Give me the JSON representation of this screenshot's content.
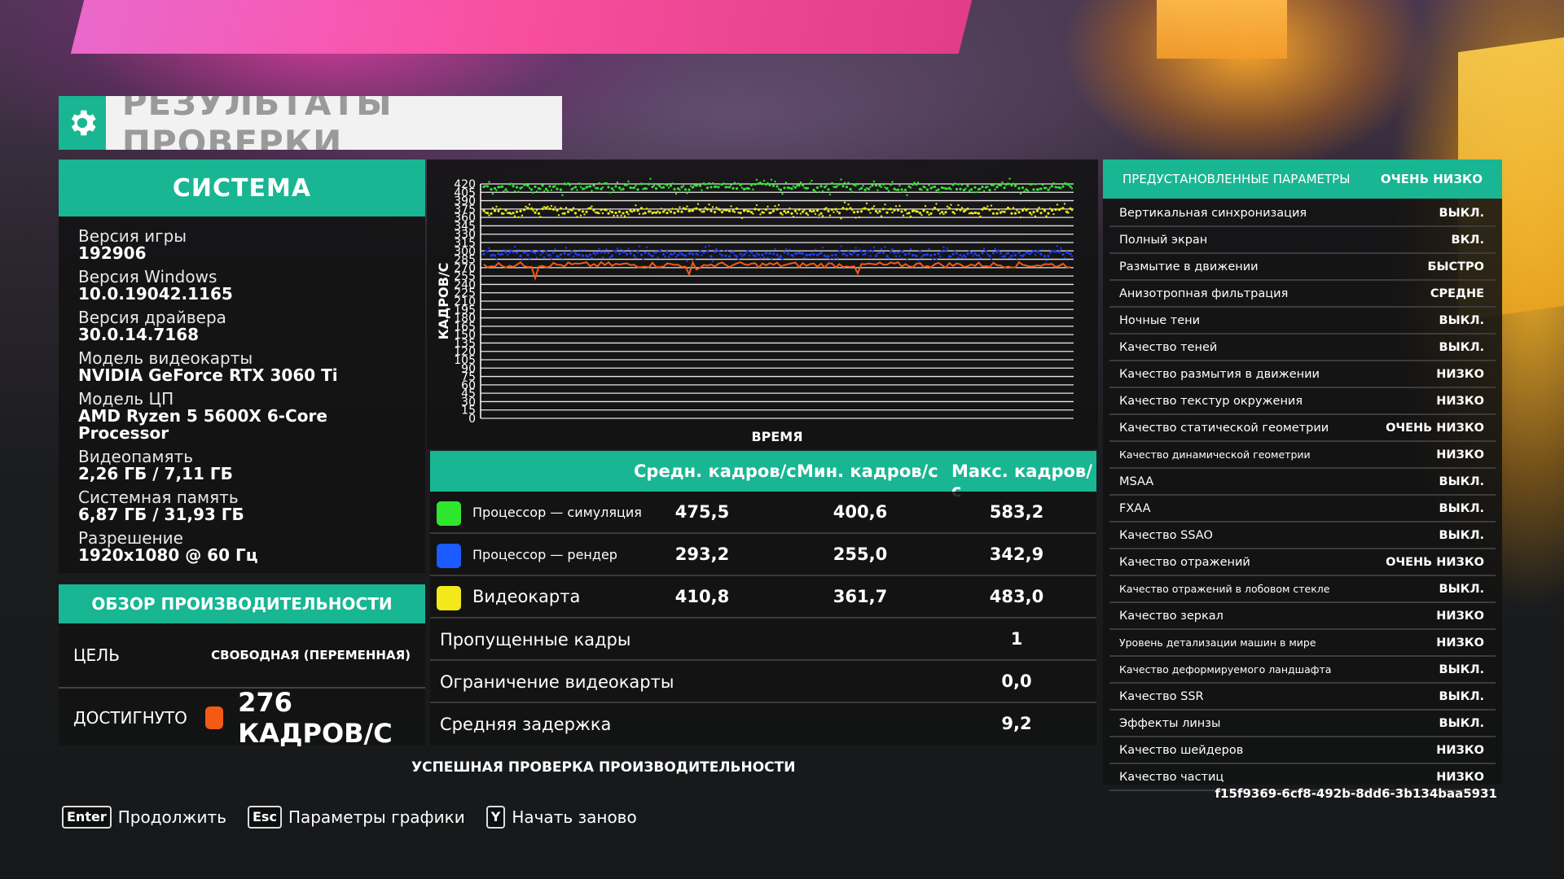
{
  "header": {
    "title": "РЕЗУЛЬТАТЫ ПРОВЕРКИ",
    "icon": "gear-icon"
  },
  "system": {
    "title": "СИСТЕМА",
    "items": [
      {
        "label": "Версия игры",
        "value": "192906"
      },
      {
        "label": "Версия Windows",
        "value": "10.0.19042.1165"
      },
      {
        "label": "Версия драйвера",
        "value": "30.0.14.7168"
      },
      {
        "label": "Модель видеокарты",
        "value": "NVIDIA GeForce RTX 3060 Ti"
      },
      {
        "label": "Модель ЦП",
        "value": "AMD Ryzen 5 5600X 6-Core Processor"
      },
      {
        "label": "Видеопамять",
        "value": "2,26 ГБ / 7,11 ГБ"
      },
      {
        "label": "Системная память",
        "value": "6,87 ГБ / 31,93 ГБ"
      },
      {
        "label": "Разрешение",
        "value": "1920x1080 @ 60 Гц"
      }
    ]
  },
  "performance": {
    "title": "ОБЗОР ПРОИЗВОДИТЕЛЬНОСТИ",
    "goal_label": "ЦЕЛЬ",
    "goal_value": "СВОБОДНАЯ (ПЕРЕМЕННАЯ)",
    "achieved_label": "ДОСТИГНУТО",
    "achieved_value": "276 КАДРОВ/С",
    "achieved_color": "#f45a14"
  },
  "chart_data": {
    "type": "line",
    "xlabel": "ВРЕМЯ",
    "ylabel": "КАДРОВ/С",
    "ylim": [
      0,
      420
    ],
    "yticks": [
      "420",
      "405",
      "390",
      "375",
      "360",
      "345",
      "330",
      "315",
      "300",
      "285",
      "270",
      "255",
      "240",
      "225",
      "210",
      "195",
      "180",
      "165",
      "150",
      "135",
      "120",
      "105",
      "90",
      "75",
      "60",
      "45",
      "30",
      "15",
      "0"
    ],
    "grid": true,
    "series": [
      {
        "color": "#2ee62e",
        "approx_level": 415
      },
      {
        "color": "#e8e81a",
        "approx_level": 372
      },
      {
        "color": "#1a3cff",
        "approx_level": 295
      },
      {
        "color": "#f45a14",
        "approx_level": 275
      }
    ]
  },
  "stats": {
    "headers": {
      "avg": "Средн. кадров/с",
      "min": "Мин. кадров/с",
      "max": "Макс. кадров/с"
    },
    "rows": [
      {
        "name": "Процессор — симуляция",
        "color": "#2ee62e",
        "avg": "475,5",
        "min": "400,6",
        "max": "583,2"
      },
      {
        "name": "Процессор — рендер",
        "color": "#1a5cff",
        "avg": "293,2",
        "min": "255,0",
        "max": "342,9"
      },
      {
        "name": "Видеокарта",
        "color": "#f2e81a",
        "avg": "410,8",
        "min": "361,7",
        "max": "483,0"
      }
    ],
    "metrics": [
      {
        "name": "Пропущенные кадры",
        "value": "1"
      },
      {
        "name": "Ограничение видеокарты",
        "value": "0,0"
      },
      {
        "name": "Средняя задержка",
        "value": "9,2"
      }
    ]
  },
  "status": "УСПЕШНАЯ ПРОВЕРКА ПРОИЗВОДИТЕЛЬНОСТИ",
  "settings": {
    "preset_label": "ПРЕДУСТАНОВЛЕННЫЕ ПАРАМЕТРЫ",
    "preset_value": "ОЧЕНЬ НИЗКО",
    "items": [
      {
        "key": "Вертикальная синхронизация",
        "value": "ВЫКЛ."
      },
      {
        "key": "Полный экран",
        "value": "ВКЛ."
      },
      {
        "key": "Размытие в движении",
        "value": "БЫСТРО"
      },
      {
        "key": "Анизотропная фильтрация",
        "value": "СРЕДНЕ"
      },
      {
        "key": "Ночные тени",
        "value": "ВЫКЛ."
      },
      {
        "key": "Качество теней",
        "value": "ВЫКЛ."
      },
      {
        "key": "Качество размытия в движении",
        "value": "НИЗКО"
      },
      {
        "key": "Качество текстур окружения",
        "value": "НИЗКО"
      },
      {
        "key": "Качество статической геометрии",
        "value": "ОЧЕНЬ НИЗКО"
      },
      {
        "key": "Качество динамической геометрии",
        "value": "НИЗКО"
      },
      {
        "key": "MSAA",
        "value": "ВЫКЛ."
      },
      {
        "key": "FXAA",
        "value": "ВЫКЛ."
      },
      {
        "key": "Качество SSAO",
        "value": "ВЫКЛ."
      },
      {
        "key": "Качество отражений",
        "value": "ОЧЕНЬ НИЗКО"
      },
      {
        "key": "Качество отражений в лобовом стекле",
        "value": "ВЫКЛ."
      },
      {
        "key": "Качество зеркал",
        "value": "НИЗКО"
      },
      {
        "key": "Уровень детализации машин в мире",
        "value": "НИЗКО"
      },
      {
        "key": "Качество деформируемого ландшафта",
        "value": "ВЫКЛ."
      },
      {
        "key": "Качество SSR",
        "value": "ВЫКЛ."
      },
      {
        "key": "Эффекты линзы",
        "value": "ВЫКЛ."
      },
      {
        "key": "Качество шейдеров",
        "value": "НИЗКО"
      },
      {
        "key": "Качество частиц",
        "value": "НИЗКО"
      }
    ],
    "id": "f15f9369-6cf8-492b-8dd6-3b134baa5931"
  },
  "footer": {
    "hints": [
      {
        "key": "Enter",
        "label": "Продолжить"
      },
      {
        "key": "Esc",
        "label": "Параметры графики"
      },
      {
        "key": "Y",
        "label": "Начать заново"
      }
    ]
  }
}
